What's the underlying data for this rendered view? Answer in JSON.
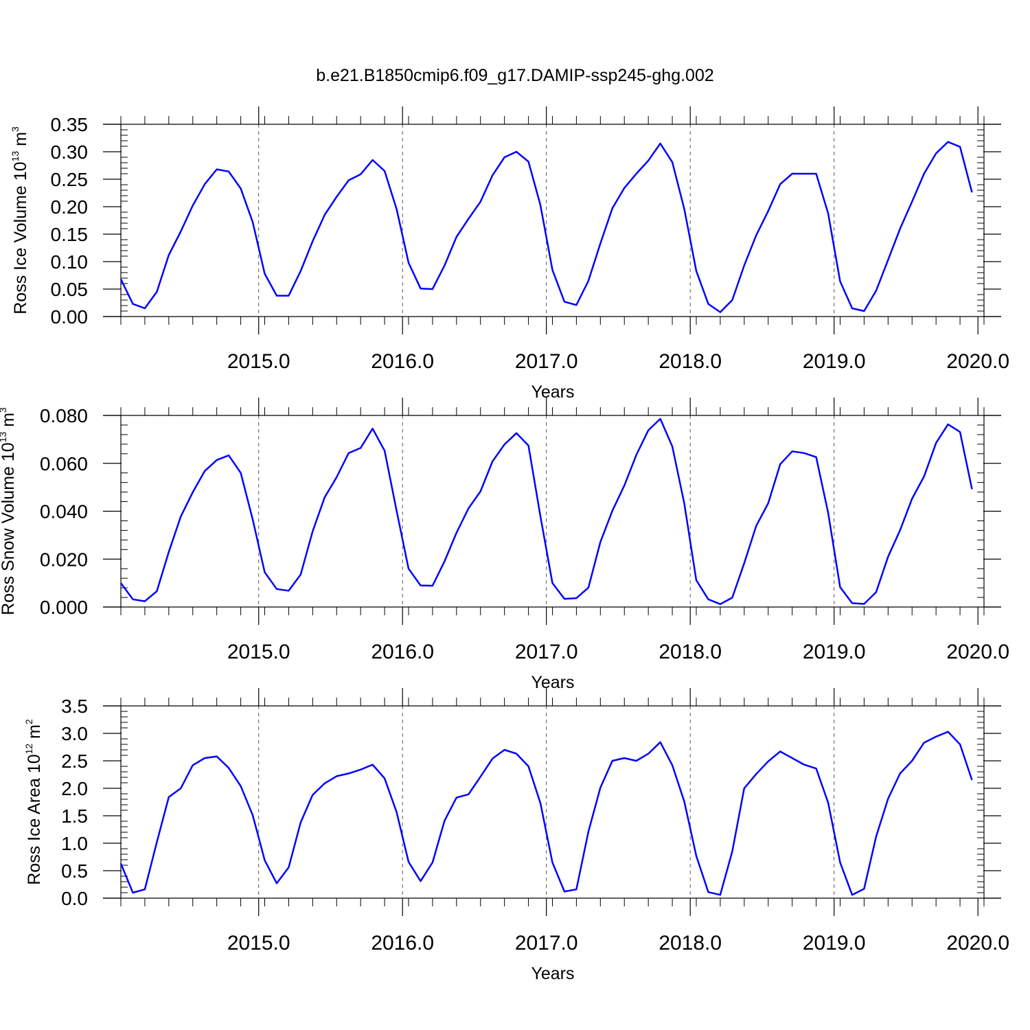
{
  "title": "b.e21.B1850cmip6.f09_g17.DAMIP-ssp245-ghg.002",
  "colors": {
    "line": "#0000ff",
    "axis": "#000000",
    "grid": "#555555"
  },
  "chart_data": [
    {
      "type": "line",
      "ylabel": {
        "main": "Ross Ice Volume 10",
        "sup": "13",
        "unit": " m",
        "unit_sup": "3"
      },
      "xlabel": "Years",
      "xlim": [
        2014.042,
        2020.042
      ],
      "ylim": [
        0,
        0.35
      ],
      "yticks": [
        0.0,
        0.05,
        0.1,
        0.15,
        0.2,
        0.25,
        0.3,
        0.35
      ],
      "ytick_labels": [
        "0.00",
        "0.05",
        "0.10",
        "0.15",
        "0.20",
        "0.25",
        "0.30",
        "0.35"
      ],
      "xticks": [
        2015,
        2016,
        2017,
        2018,
        2019,
        2020
      ],
      "xtick_labels": [
        "2015.0",
        "2016.0",
        "2017.0",
        "2018.0",
        "2019.0",
        "2020.0"
      ],
      "grid_x": "dashed vertical at year boundaries",
      "series": [
        {
          "x_start": 2014.042,
          "x_step": 0.0833333,
          "values": [
            0.068,
            0.023,
            0.015,
            0.045,
            0.112,
            0.155,
            0.202,
            0.241,
            0.268,
            0.264,
            0.233,
            0.172,
            0.078,
            0.038,
            0.038,
            0.083,
            0.137,
            0.185,
            0.218,
            0.248,
            0.259,
            0.285,
            0.265,
            0.196,
            0.098,
            0.051,
            0.05,
            0.093,
            0.145,
            0.178,
            0.209,
            0.257,
            0.29,
            0.3,
            0.282,
            0.203,
            0.085,
            0.027,
            0.021,
            0.065,
            0.133,
            0.197,
            0.234,
            0.26,
            0.284,
            0.315,
            0.281,
            0.196,
            0.083,
            0.023,
            0.008,
            0.03,
            0.093,
            0.148,
            0.192,
            0.241,
            0.26,
            0.26,
            0.26,
            0.188,
            0.064,
            0.015,
            0.01,
            0.047,
            0.103,
            0.16,
            0.209,
            0.26,
            0.297,
            0.318,
            0.309,
            0.226
          ]
        }
      ]
    },
    {
      "type": "line",
      "ylabel": {
        "main": "Ross Snow Volume 10",
        "sup": "13",
        "unit": " m",
        "unit_sup": "3"
      },
      "xlabel": "Years",
      "xlim": [
        2014.042,
        2020.042
      ],
      "ylim": [
        0,
        0.08
      ],
      "yticks": [
        0.0,
        0.02,
        0.04,
        0.06,
        0.08
      ],
      "ytick_labels": [
        "0.000",
        "0.020",
        "0.040",
        "0.060",
        "0.080"
      ],
      "xticks": [
        2015,
        2016,
        2017,
        2018,
        2019,
        2020
      ],
      "xtick_labels": [
        "2015.0",
        "2016.0",
        "2017.0",
        "2018.0",
        "2019.0",
        "2020.0"
      ],
      "grid_x": "dashed vertical at year boundaries",
      "series": [
        {
          "x_start": 2014.042,
          "x_step": 0.0833333,
          "values": [
            0.01,
            0.0032,
            0.0024,
            0.0066,
            0.023,
            0.0378,
            0.0479,
            0.0568,
            0.0614,
            0.0633,
            0.056,
            0.0366,
            0.0145,
            0.0075,
            0.0068,
            0.0136,
            0.0316,
            0.0458,
            0.0542,
            0.0643,
            0.0664,
            0.0745,
            0.0653,
            0.0403,
            0.016,
            0.009,
            0.0089,
            0.0191,
            0.031,
            0.0412,
            0.0483,
            0.0608,
            0.0679,
            0.0726,
            0.0674,
            0.0379,
            0.01,
            0.0034,
            0.0037,
            0.0081,
            0.0271,
            0.0402,
            0.0507,
            0.0635,
            0.0738,
            0.0786,
            0.067,
            0.0433,
            0.0112,
            0.0032,
            0.0012,
            0.0039,
            0.0183,
            0.0339,
            0.0433,
            0.0596,
            0.065,
            0.0643,
            0.0626,
            0.0394,
            0.0083,
            0.0016,
            0.0013,
            0.0062,
            0.021,
            0.0321,
            0.0452,
            0.0545,
            0.0685,
            0.0763,
            0.0731,
            0.0492
          ]
        }
      ]
    },
    {
      "type": "line",
      "ylabel": {
        "main": "Ross Ice Area 10",
        "sup": "12",
        "unit": " m",
        "unit_sup": "2"
      },
      "xlabel": "Years",
      "xlim": [
        2014.042,
        2020.042
      ],
      "ylim": [
        0,
        3.5
      ],
      "yticks": [
        0.0,
        0.5,
        1.0,
        1.5,
        2.0,
        2.5,
        3.0,
        3.5
      ],
      "ytick_labels": [
        "0.0",
        "0.5",
        "1.0",
        "1.5",
        "2.0",
        "2.5",
        "3.0",
        "3.5"
      ],
      "xticks": [
        2015,
        2016,
        2017,
        2018,
        2019,
        2020
      ],
      "xtick_labels": [
        "2015.0",
        "2016.0",
        "2017.0",
        "2018.0",
        "2019.0",
        "2020.0"
      ],
      "grid_x": "dashed vertical at year boundaries",
      "series": [
        {
          "x_start": 2014.042,
          "x_step": 0.0833333,
          "values": [
            0.63,
            0.1,
            0.16,
            1.02,
            1.84,
            2.0,
            2.42,
            2.55,
            2.58,
            2.37,
            2.04,
            1.51,
            0.69,
            0.27,
            0.56,
            1.38,
            1.88,
            2.09,
            2.22,
            2.27,
            2.34,
            2.43,
            2.18,
            1.57,
            0.66,
            0.31,
            0.65,
            1.41,
            1.83,
            1.89,
            2.21,
            2.54,
            2.7,
            2.63,
            2.4,
            1.73,
            0.65,
            0.12,
            0.16,
            1.21,
            2.01,
            2.5,
            2.55,
            2.5,
            2.63,
            2.84,
            2.42,
            1.76,
            0.77,
            0.11,
            0.06,
            0.85,
            2.0,
            2.26,
            2.49,
            2.67,
            2.55,
            2.43,
            2.36,
            1.74,
            0.65,
            0.06,
            0.17,
            1.12,
            1.81,
            2.27,
            2.5,
            2.83,
            2.94,
            3.03,
            2.8,
            2.15
          ]
        }
      ]
    }
  ]
}
